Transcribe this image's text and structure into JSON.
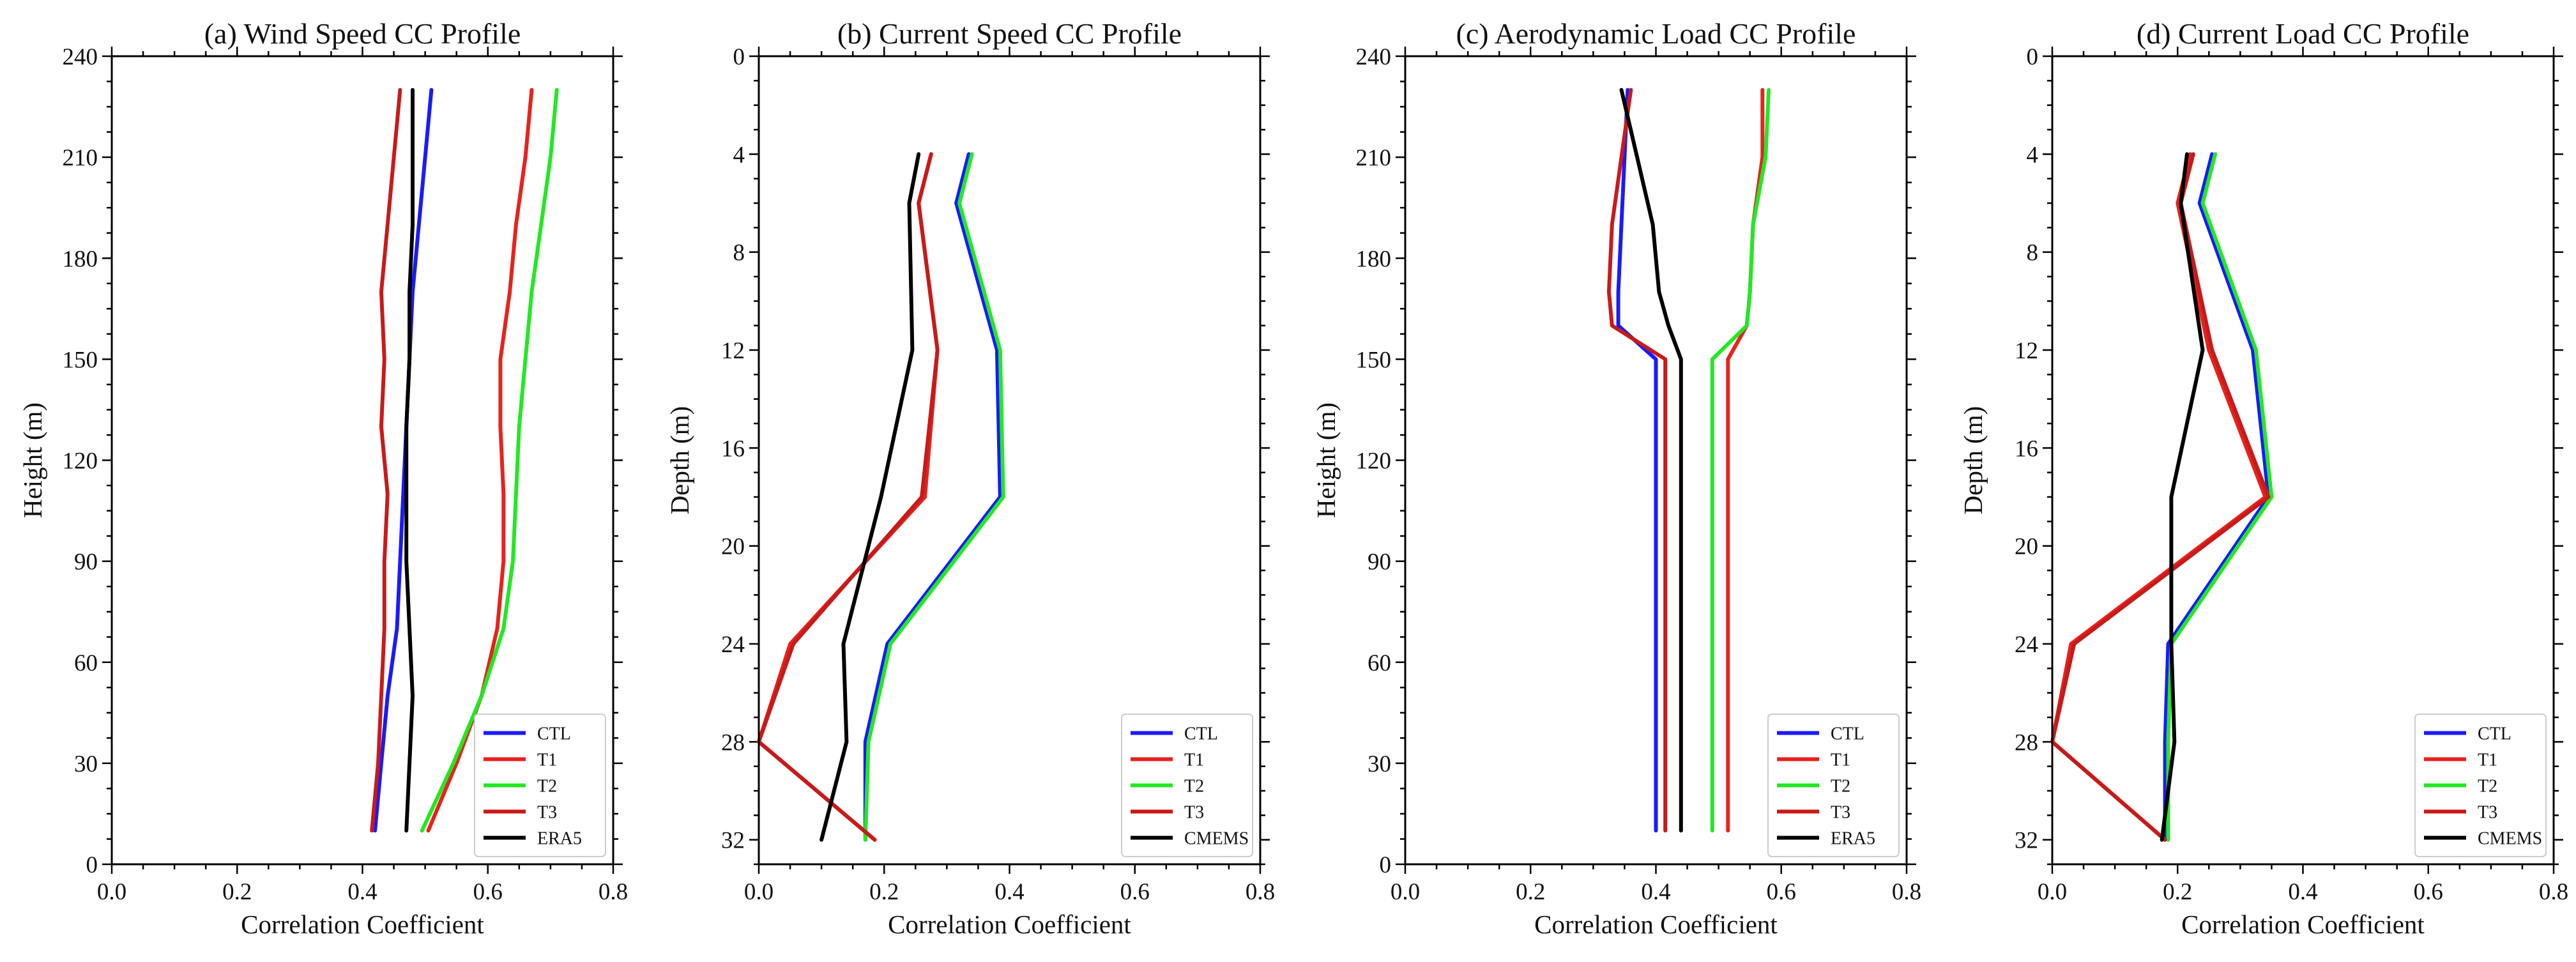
{
  "chart_data": [
    {
      "type": "line",
      "orientation": "profile",
      "title": "(a) Wind Speed CC Profile",
      "xlabel": "Correlation Coefficient",
      "ylabel": "Height (m)",
      "xlim": [
        0,
        0.8
      ],
      "ylim": [
        0,
        240
      ],
      "y_inverted": false,
      "xticks": [
        0.0,
        0.2,
        0.4,
        0.6,
        0.8
      ],
      "xtick_labels": [
        "0.0",
        "0.2",
        "0.4",
        "0.6",
        "0.8"
      ],
      "yticks": [
        0,
        30,
        60,
        90,
        120,
        150,
        180,
        210,
        240
      ],
      "ytick_labels": [
        "0",
        "30",
        "60",
        "90",
        "120",
        "150",
        "180",
        "210",
        "240"
      ],
      "legend_position": "bottom-right",
      "series": [
        {
          "name": "CTL",
          "color": "#1a1aff",
          "levels": [
            10,
            30,
            50,
            70,
            90,
            110,
            130,
            150,
            170,
            190,
            210,
            230
          ],
          "values": [
            0.42,
            0.43,
            0.44,
            0.455,
            0.46,
            0.465,
            0.47,
            0.475,
            0.48,
            0.49,
            0.5,
            0.51
          ]
        },
        {
          "name": "T1",
          "color": "#e8221c",
          "levels": [
            10,
            30,
            50,
            70,
            90,
            110,
            130,
            150,
            170,
            190,
            210,
            230
          ],
          "values": [
            0.505,
            0.55,
            0.59,
            0.615,
            0.625,
            0.625,
            0.62,
            0.62,
            0.635,
            0.645,
            0.66,
            0.67
          ]
        },
        {
          "name": "T2",
          "color": "#22e822",
          "levels": [
            10,
            30,
            50,
            70,
            90,
            110,
            130,
            150,
            170,
            190,
            210,
            230
          ],
          "values": [
            0.495,
            0.545,
            0.59,
            0.625,
            0.64,
            0.645,
            0.65,
            0.66,
            0.67,
            0.685,
            0.7,
            0.71
          ]
        },
        {
          "name": "T3",
          "color": "#c81a1a",
          "levels": [
            10,
            30,
            50,
            70,
            90,
            110,
            130,
            150,
            170,
            190,
            210,
            230
          ],
          "values": [
            0.415,
            0.425,
            0.43,
            0.435,
            0.435,
            0.44,
            0.43,
            0.435,
            0.43,
            0.44,
            0.45,
            0.46
          ]
        },
        {
          "name": "ERA5",
          "color": "#000000",
          "levels": [
            10,
            30,
            50,
            70,
            90,
            110,
            130,
            150,
            170,
            190,
            210,
            230
          ],
          "values": [
            0.47,
            0.475,
            0.48,
            0.475,
            0.47,
            0.47,
            0.47,
            0.475,
            0.475,
            0.48,
            0.48,
            0.48
          ]
        }
      ]
    },
    {
      "type": "line",
      "orientation": "profile",
      "title": "(b) Current Speed CC Profile",
      "xlabel": "Correlation Coefficient",
      "ylabel": "Depth (m)",
      "xlim": [
        0,
        0.8
      ],
      "ylim": [
        0,
        33
      ],
      "y_inverted": true,
      "xticks": [
        0.0,
        0.2,
        0.4,
        0.6,
        0.8
      ],
      "xtick_labels": [
        "0.0",
        "0.2",
        "0.4",
        "0.6",
        "0.8"
      ],
      "yticks": [
        0,
        4,
        8,
        12,
        16,
        20,
        24,
        28,
        32
      ],
      "ytick_labels": [
        "0",
        "4",
        "8",
        "12",
        "16",
        "20",
        "24",
        "28",
        "32"
      ],
      "legend_position": "bottom-right",
      "series": [
        {
          "name": "CTL",
          "color": "#1a1aff",
          "levels": [
            4,
            6,
            12,
            18,
            24,
            28,
            32
          ],
          "values": [
            0.335,
            0.315,
            0.38,
            0.385,
            0.205,
            0.17,
            0.17
          ]
        },
        {
          "name": "T1",
          "color": "#e8221c",
          "levels": [
            4,
            6,
            12,
            18,
            24,
            28,
            32
          ],
          "values": [
            0.275,
            0.255,
            0.285,
            0.265,
            0.05,
            0.0,
            0.185
          ]
        },
        {
          "name": "T2",
          "color": "#22e822",
          "levels": [
            4,
            6,
            12,
            18,
            24,
            28,
            32
          ],
          "values": [
            0.34,
            0.32,
            0.385,
            0.39,
            0.21,
            0.175,
            0.17
          ]
        },
        {
          "name": "T3",
          "color": "#c81a1a",
          "levels": [
            4,
            6,
            12,
            18,
            24,
            28,
            32
          ],
          "values": [
            0.275,
            0.255,
            0.285,
            0.26,
            0.055,
            0.0,
            0.185
          ]
        },
        {
          "name": "CMEMS",
          "color": "#000000",
          "levels": [
            4,
            6,
            12,
            18,
            24,
            28,
            32
          ],
          "values": [
            0.255,
            0.24,
            0.245,
            0.195,
            0.135,
            0.14,
            0.1
          ]
        }
      ]
    },
    {
      "type": "line",
      "orientation": "profile",
      "title": "(c) Aerodynamic Load CC Profile",
      "xlabel": "Correlation Coefficient",
      "ylabel": "Height (m)",
      "xlim": [
        0,
        0.8
      ],
      "ylim": [
        0,
        240
      ],
      "y_inverted": false,
      "xticks": [
        0.0,
        0.2,
        0.4,
        0.6,
        0.8
      ],
      "xtick_labels": [
        "0.0",
        "0.2",
        "0.4",
        "0.6",
        "0.8"
      ],
      "yticks": [
        0,
        30,
        60,
        90,
        120,
        150,
        180,
        210,
        240
      ],
      "ytick_labels": [
        "0",
        "30",
        "60",
        "90",
        "120",
        "150",
        "180",
        "210",
        "240"
      ],
      "legend_position": "bottom-right",
      "series": [
        {
          "name": "CTL",
          "color": "#1a1aff",
          "levels": [
            10,
            150,
            160,
            170,
            190,
            210,
            230
          ],
          "values": [
            0.4,
            0.4,
            0.34,
            0.34,
            0.345,
            0.35,
            0.355
          ]
        },
        {
          "name": "T1",
          "color": "#e8221c",
          "levels": [
            10,
            150,
            160,
            170,
            190,
            210,
            230
          ],
          "values": [
            0.515,
            0.515,
            0.545,
            0.55,
            0.555,
            0.57,
            0.57
          ]
        },
        {
          "name": "T2",
          "color": "#22e822",
          "levels": [
            10,
            150,
            160,
            170,
            190,
            210,
            230
          ],
          "values": [
            0.49,
            0.49,
            0.545,
            0.55,
            0.555,
            0.575,
            0.58
          ]
        },
        {
          "name": "T3",
          "color": "#c81a1a",
          "levels": [
            10,
            150,
            160,
            170,
            190,
            210,
            230
          ],
          "values": [
            0.415,
            0.415,
            0.33,
            0.325,
            0.33,
            0.345,
            0.36
          ]
        },
        {
          "name": "ERA5",
          "color": "#000000",
          "levels": [
            10,
            150,
            160,
            170,
            190,
            210,
            230
          ],
          "values": [
            0.44,
            0.44,
            0.42,
            0.405,
            0.395,
            0.37,
            0.345
          ]
        }
      ]
    },
    {
      "type": "line",
      "orientation": "profile",
      "title": "(d) Current Load CC Profile",
      "xlabel": "Correlation Coefficient",
      "ylabel": "Depth (m)",
      "xlim": [
        0,
        0.8
      ],
      "ylim": [
        0,
        33
      ],
      "y_inverted": true,
      "xticks": [
        0.0,
        0.2,
        0.4,
        0.6,
        0.8
      ],
      "xtick_labels": [
        "0.0",
        "0.2",
        "0.4",
        "0.6",
        "0.8"
      ],
      "yticks": [
        0,
        4,
        8,
        12,
        16,
        20,
        24,
        28,
        32
      ],
      "ytick_labels": [
        "0",
        "4",
        "8",
        "12",
        "16",
        "20",
        "24",
        "28",
        "32"
      ],
      "legend_position": "bottom-right",
      "series": [
        {
          "name": "CTL",
          "color": "#1a1aff",
          "levels": [
            4,
            6,
            12,
            18,
            24,
            28,
            32
          ],
          "values": [
            0.255,
            0.235,
            0.32,
            0.345,
            0.185,
            0.18,
            0.18
          ]
        },
        {
          "name": "T1",
          "color": "#e8221c",
          "levels": [
            4,
            6,
            12,
            18,
            24,
            28,
            32
          ],
          "values": [
            0.22,
            0.2,
            0.25,
            0.34,
            0.03,
            0.0,
            0.18
          ]
        },
        {
          "name": "T2",
          "color": "#22e822",
          "levels": [
            4,
            6,
            12,
            18,
            24,
            28,
            32
          ],
          "values": [
            0.26,
            0.24,
            0.325,
            0.35,
            0.19,
            0.185,
            0.185
          ]
        },
        {
          "name": "T3",
          "color": "#c81a1a",
          "levels": [
            4,
            6,
            12,
            18,
            24,
            28,
            32
          ],
          "values": [
            0.225,
            0.205,
            0.255,
            0.345,
            0.035,
            0.0,
            0.18
          ]
        },
        {
          "name": "CMEMS",
          "color": "#000000",
          "levels": [
            4,
            6,
            12,
            18,
            24,
            28,
            32
          ],
          "values": [
            0.215,
            0.205,
            0.24,
            0.19,
            0.19,
            0.195,
            0.175
          ]
        }
      ]
    }
  ]
}
